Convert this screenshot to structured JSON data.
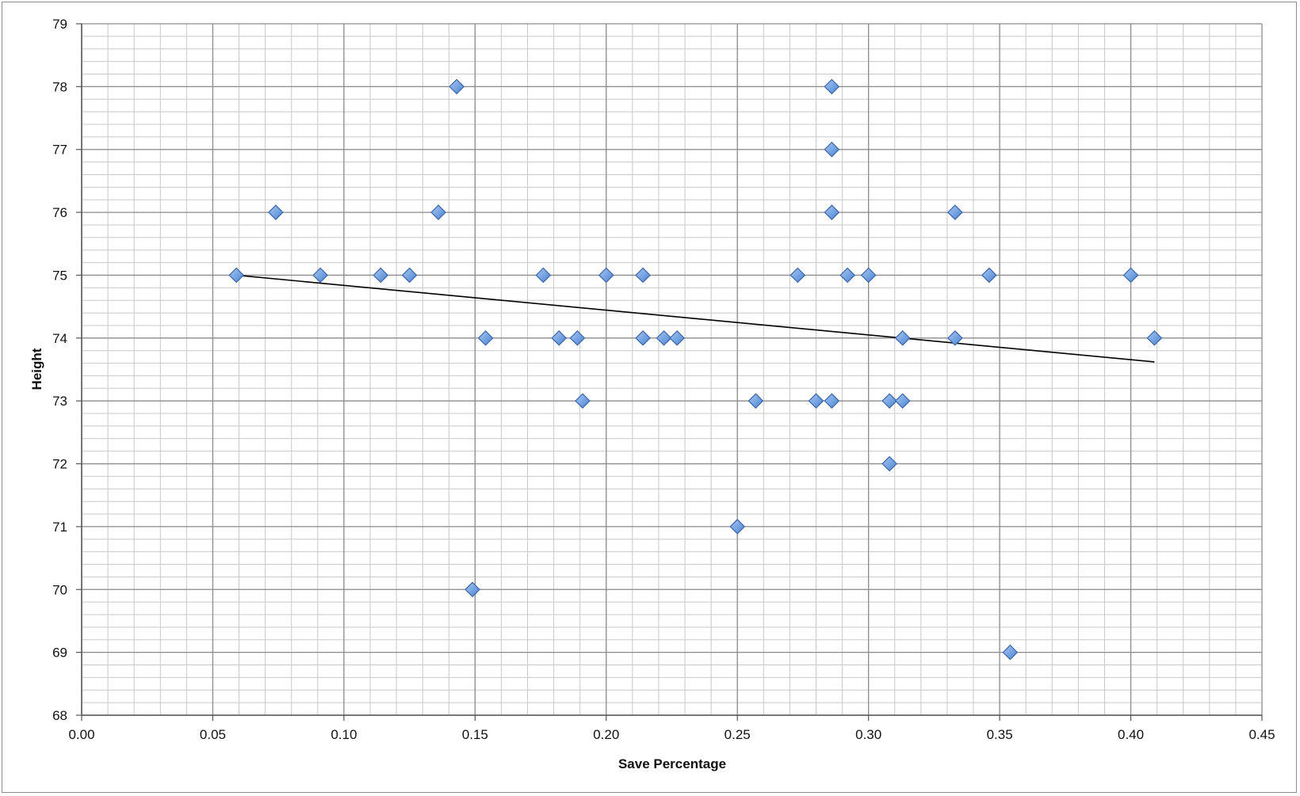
{
  "chart_data": {
    "type": "scatter",
    "xlabel": "Save Percentage",
    "ylabel": "Height",
    "xlim": [
      0.0,
      0.45
    ],
    "ylim": [
      68,
      79
    ],
    "x_ticks": [
      "0.00",
      "0.05",
      "0.10",
      "0.15",
      "0.20",
      "0.25",
      "0.30",
      "0.35",
      "0.40",
      "0.45"
    ],
    "y_ticks": [
      "68",
      "69",
      "70",
      "71",
      "72",
      "73",
      "74",
      "75",
      "76",
      "77",
      "78",
      "79"
    ],
    "grid": "major and minor",
    "legend": "none",
    "marker": "diamond",
    "colors": {
      "marker_fill": "#6f9fe0",
      "marker_edge": "#3a66a8",
      "trendline": "#000000",
      "major_grid": "#8c8c8c",
      "minor_grid": "#c8c8c8"
    },
    "points": [
      {
        "x": 0.059,
        "y": 75
      },
      {
        "x": 0.074,
        "y": 76
      },
      {
        "x": 0.091,
        "y": 75
      },
      {
        "x": 0.114,
        "y": 75
      },
      {
        "x": 0.125,
        "y": 75
      },
      {
        "x": 0.136,
        "y": 76
      },
      {
        "x": 0.143,
        "y": 78
      },
      {
        "x": 0.149,
        "y": 70
      },
      {
        "x": 0.154,
        "y": 74
      },
      {
        "x": 0.176,
        "y": 75
      },
      {
        "x": 0.182,
        "y": 74
      },
      {
        "x": 0.189,
        "y": 74
      },
      {
        "x": 0.191,
        "y": 73
      },
      {
        "x": 0.2,
        "y": 75
      },
      {
        "x": 0.214,
        "y": 75
      },
      {
        "x": 0.214,
        "y": 74
      },
      {
        "x": 0.222,
        "y": 74
      },
      {
        "x": 0.227,
        "y": 74
      },
      {
        "x": 0.25,
        "y": 71
      },
      {
        "x": 0.257,
        "y": 73
      },
      {
        "x": 0.273,
        "y": 75
      },
      {
        "x": 0.28,
        "y": 73
      },
      {
        "x": 0.286,
        "y": 78
      },
      {
        "x": 0.286,
        "y": 77
      },
      {
        "x": 0.286,
        "y": 76
      },
      {
        "x": 0.286,
        "y": 73
      },
      {
        "x": 0.292,
        "y": 75
      },
      {
        "x": 0.3,
        "y": 75
      },
      {
        "x": 0.308,
        "y": 73
      },
      {
        "x": 0.308,
        "y": 72
      },
      {
        "x": 0.313,
        "y": 74
      },
      {
        "x": 0.313,
        "y": 73
      },
      {
        "x": 0.333,
        "y": 76
      },
      {
        "x": 0.333,
        "y": 74
      },
      {
        "x": 0.346,
        "y": 75
      },
      {
        "x": 0.354,
        "y": 69
      },
      {
        "x": 0.4,
        "y": 75
      },
      {
        "x": 0.409,
        "y": 74
      }
    ],
    "trendline": {
      "type": "linear",
      "x": [
        0.059,
        0.409
      ],
      "y": [
        75.0,
        73.62
      ]
    }
  }
}
